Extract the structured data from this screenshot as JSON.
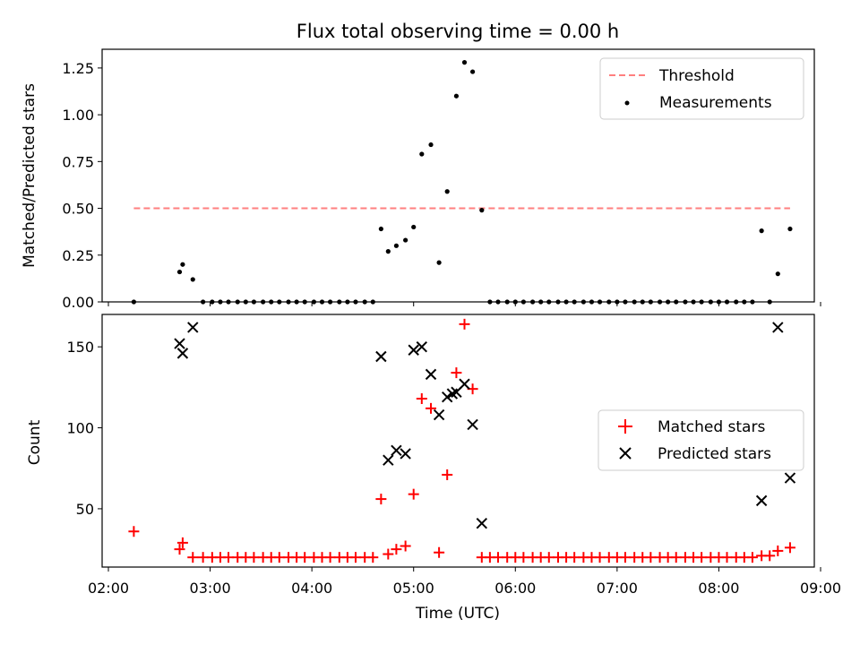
{
  "title": "Flux total observing time = 0.00 h",
  "colors": {
    "threshold": "#ff7f7f",
    "measurements": "#000000",
    "matched": "#ff0000",
    "predicted": "#000000"
  },
  "chart_data": [
    {
      "type": "scatter",
      "ylabel": "Matched/Predicted stars",
      "xlim": [
        2.0,
        9.0
      ],
      "ylim": [
        0,
        1.35
      ],
      "yticks": [
        "0.00",
        "0.25",
        "0.50",
        "0.75",
        "1.00",
        "1.25"
      ],
      "legend": {
        "placement": "top-right",
        "entries": [
          "Threshold",
          "Measurements"
        ]
      },
      "threshold": {
        "name": "Threshold",
        "value": 0.5,
        "x_range": [
          2.25,
          8.7
        ]
      },
      "series": [
        {
          "name": "Measurements",
          "x": [
            2.25,
            2.7,
            2.73,
            2.83,
            2.93,
            3.02,
            3.1,
            3.18,
            3.27,
            3.35,
            3.43,
            3.52,
            3.6,
            3.68,
            3.77,
            3.85,
            3.93,
            4.02,
            4.1,
            4.18,
            4.27,
            4.35,
            4.43,
            4.52,
            4.6,
            4.68,
            4.75,
            4.83,
            4.92,
            5.0,
            5.08,
            5.17,
            5.25,
            5.33,
            5.42,
            5.5,
            5.58,
            5.67,
            5.75,
            5.83,
            5.92,
            6.0,
            6.08,
            6.17,
            6.25,
            6.33,
            6.42,
            6.5,
            6.58,
            6.67,
            6.75,
            6.83,
            6.92,
            7.0,
            7.08,
            7.17,
            7.25,
            7.33,
            7.42,
            7.5,
            7.58,
            7.67,
            7.75,
            7.83,
            7.92,
            8.0,
            8.08,
            8.17,
            8.25,
            8.33,
            8.42,
            8.5,
            8.58,
            8.7
          ],
          "y": [
            0.0,
            0.16,
            0.2,
            0.12,
            0.0,
            0.0,
            0.0,
            0.0,
            0.0,
            0.0,
            0.0,
            0.0,
            0.0,
            0.0,
            0.0,
            0.0,
            0.0,
            0.0,
            0.0,
            0.0,
            0.0,
            0.0,
            0.0,
            0.0,
            0.0,
            0.39,
            0.27,
            0.3,
            0.33,
            0.4,
            0.79,
            0.84,
            0.21,
            0.59,
            1.1,
            1.28,
            1.23,
            0.49,
            0.0,
            0.0,
            0.0,
            0.0,
            0.0,
            0.0,
            0.0,
            0.0,
            0.0,
            0.0,
            0.0,
            0.0,
            0.0,
            0.0,
            0.0,
            0.0,
            0.0,
            0.0,
            0.0,
            0.0,
            0.0,
            0.0,
            0.0,
            0.0,
            0.0,
            0.0,
            0.0,
            0.0,
            0.0,
            0.0,
            0.0,
            0.0,
            0.38,
            0.0,
            0.15,
            0.39
          ]
        }
      ]
    },
    {
      "type": "scatter",
      "xlabel": "Time (UTC)",
      "ylabel": "Count",
      "xlim": [
        2.0,
        9.0
      ],
      "ylim": [
        14,
        170
      ],
      "yticks": [
        "50",
        "100",
        "150"
      ],
      "xticks": [
        "02:00",
        "03:00",
        "04:00",
        "05:00",
        "06:00",
        "07:00",
        "08:00",
        "09:00"
      ],
      "legend": {
        "placement": "center-right",
        "entries": [
          "Matched stars",
          "Predicted stars"
        ]
      },
      "series": [
        {
          "name": "Matched stars",
          "marker": "plus",
          "x": [
            2.25,
            2.7,
            2.73,
            2.83,
            2.93,
            3.02,
            3.1,
            3.18,
            3.27,
            3.35,
            3.43,
            3.52,
            3.6,
            3.68,
            3.77,
            3.85,
            3.93,
            4.02,
            4.1,
            4.18,
            4.27,
            4.35,
            4.43,
            4.52,
            4.6,
            4.68,
            4.75,
            4.83,
            4.92,
            5.0,
            5.08,
            5.17,
            5.25,
            5.33,
            5.42,
            5.5,
            5.58,
            5.67,
            5.75,
            5.83,
            5.92,
            6.0,
            6.08,
            6.17,
            6.25,
            6.33,
            6.42,
            6.5,
            6.58,
            6.67,
            6.75,
            6.83,
            6.92,
            7.0,
            7.08,
            7.17,
            7.25,
            7.33,
            7.42,
            7.5,
            7.58,
            7.67,
            7.75,
            7.83,
            7.92,
            8.0,
            8.08,
            8.17,
            8.25,
            8.33,
            8.42,
            8.5,
            8.58,
            8.7
          ],
          "y": [
            36,
            25,
            29,
            20,
            20,
            20,
            20,
            20,
            20,
            20,
            20,
            20,
            20,
            20,
            20,
            20,
            20,
            20,
            20,
            20,
            20,
            20,
            20,
            20,
            20,
            56,
            22,
            25,
            27,
            59,
            118,
            112,
            23,
            71,
            134,
            164,
            124,
            20,
            20,
            20,
            20,
            20,
            20,
            20,
            20,
            20,
            20,
            20,
            20,
            20,
            20,
            20,
            20,
            20,
            20,
            20,
            20,
            20,
            20,
            20,
            20,
            20,
            20,
            20,
            20,
            20,
            20,
            20,
            20,
            20,
            21,
            21,
            24,
            26
          ]
        },
        {
          "name": "Predicted stars",
          "marker": "x",
          "x": [
            2.7,
            2.73,
            2.83,
            4.68,
            4.75,
            4.83,
            4.92,
            5.0,
            5.08,
            5.17,
            5.25,
            5.33,
            5.38,
            5.42,
            5.5,
            5.58,
            5.67,
            8.42,
            8.58,
            8.7
          ],
          "y": [
            152,
            146,
            162,
            144,
            80,
            86,
            84,
            148,
            150,
            133,
            108,
            119,
            121,
            122,
            127,
            102,
            41,
            55,
            162,
            69
          ]
        }
      ]
    }
  ]
}
